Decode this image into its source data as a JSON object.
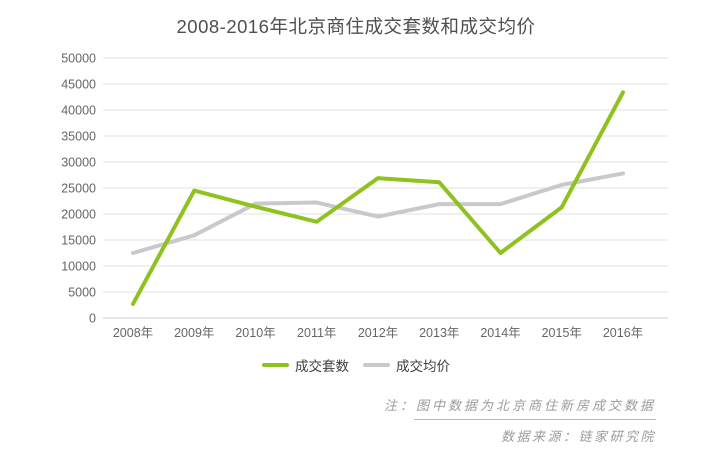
{
  "title": "2008-2016年北京商住成交套数和成交均价",
  "colors": {
    "volume_line": "#8dc21f",
    "price_line": "#c9c9c9",
    "title_text": "#4f4f4f",
    "axis_text": "#666666",
    "gridline": "#e2e2e2",
    "axis_line": "#cfcfcf",
    "note_text": "#9b9b9b"
  },
  "legend": {
    "volume_label": "成交套数",
    "price_label": "成交均价"
  },
  "notes": {
    "line1": "注：图中数据为北京商住新房成交数据",
    "line2": "数据来源：链家研究院"
  },
  "chart_data": {
    "type": "line",
    "title": "2008-2016年北京商住成交套数和成交均价",
    "categories": [
      "2008年",
      "2009年",
      "2010年",
      "2011年",
      "2012年",
      "2013年",
      "2014年",
      "2015年",
      "2016年"
    ],
    "series": [
      {
        "name": "成交套数",
        "color": "#8dc21f",
        "values": [
          2700,
          24500,
          21400,
          18500,
          26900,
          26100,
          12500,
          21300,
          43400
        ]
      },
      {
        "name": "成交均价",
        "color": "#c9c9c9",
        "values": [
          12500,
          15900,
          22000,
          22200,
          19500,
          21900,
          21900,
          25600,
          27800
        ]
      }
    ],
    "xlabel": "",
    "ylabel": "",
    "ylim": [
      0,
      50000
    ],
    "ytick_step": 5000,
    "grid": true,
    "legend_position": "bottom",
    "legend_entries": [
      "成交套数",
      "成交均价"
    ]
  }
}
